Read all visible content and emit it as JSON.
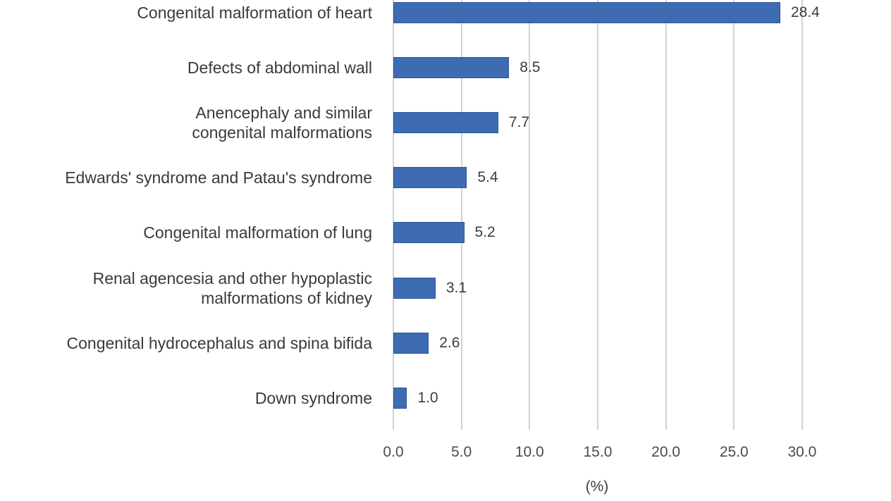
{
  "chart_data": {
    "type": "bar",
    "orientation": "horizontal",
    "title": "",
    "xlabel": "(%)",
    "ylabel": "",
    "xlim": [
      0,
      30
    ],
    "grid": "vertical gridlines, light gray",
    "legend": "none",
    "xtick_values": [
      0,
      5,
      10,
      15,
      20,
      25,
      30
    ],
    "xtick_labels": [
      "0.0",
      "5.0",
      "10.0",
      "15.0",
      "20.0",
      "25.0",
      "30.0"
    ],
    "bars": [
      {
        "category": "Congenital malformation of heart",
        "lines": [
          "Congenital malformation of heart"
        ],
        "value": 28.4,
        "label": "28.4"
      },
      {
        "category": "Defects of abdominal wall",
        "lines": [
          "Defects of abdominal wall"
        ],
        "value": 8.5,
        "label": "8.5"
      },
      {
        "category": "Anencephaly and similar congenital malformations",
        "lines": [
          "Anencephaly and similar",
          "congenital malformations"
        ],
        "value": 7.7,
        "label": "7.7"
      },
      {
        "category": "Edwards' syndrome and Patau's syndrome",
        "lines": [
          "Edwards' syndrome and Patau's syndrome"
        ],
        "value": 5.4,
        "label": "5.4"
      },
      {
        "category": "Congenital malformation of lung",
        "lines": [
          "Congenital malformation of lung"
        ],
        "value": 5.2,
        "label": "5.2"
      },
      {
        "category": "Renal agencesia and other hypoplastic malformations of kidney",
        "lines": [
          "Renal agencesia and other hypoplastic",
          "malformations of kidney"
        ],
        "value": 3.1,
        "label": "3.1"
      },
      {
        "category": "Congenital hydrocephalus and spina bifida",
        "lines": [
          "Congenital hydrocephalus and spina bifida"
        ],
        "value": 2.6,
        "label": "2.6"
      },
      {
        "category": "Down syndrome",
        "lines": [
          "Down syndrome"
        ],
        "value": 1.0,
        "label": "1.0"
      }
    ],
    "colors": {
      "bar_fill": "#3E6CB3",
      "bar_border": "#2B5797",
      "gridline": "#D2D2D2",
      "category_text": "#3A3A3A",
      "value_text": "#3D3D3D",
      "tick_text": "#4B4B4B"
    }
  }
}
